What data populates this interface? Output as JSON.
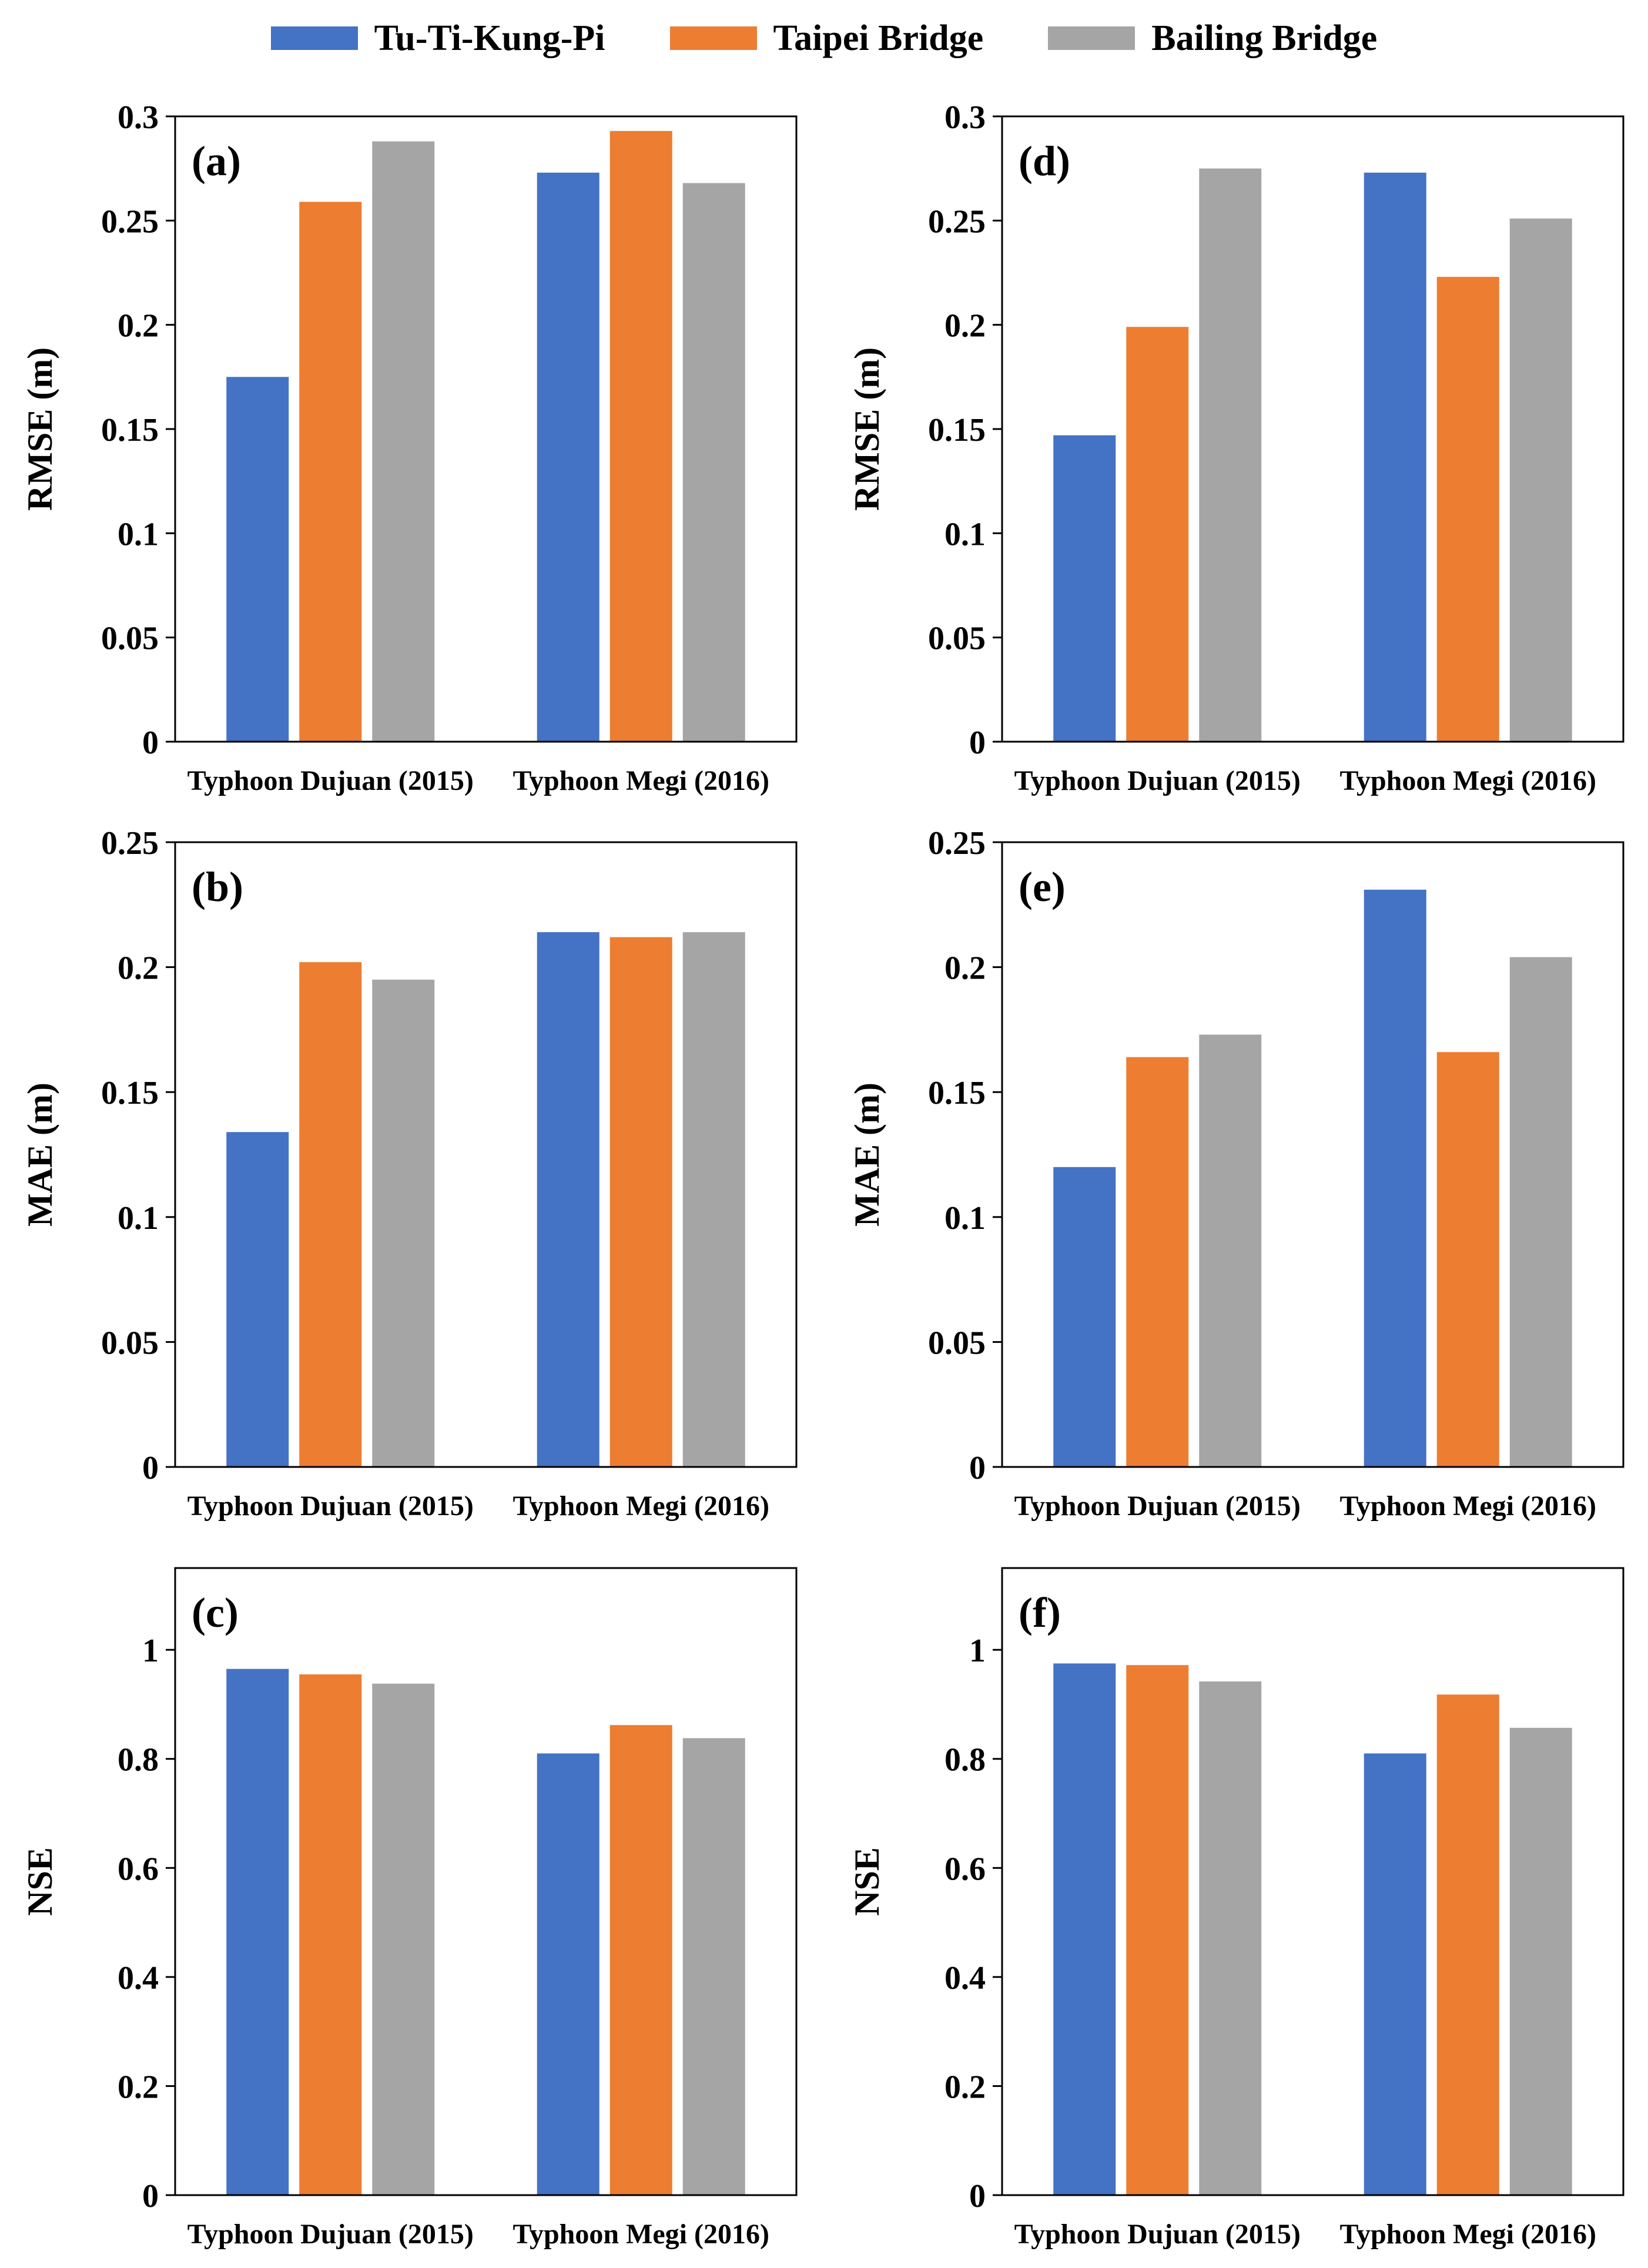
{
  "legend": [
    {
      "label": "Tu-Ti-Kung-Pi",
      "color": "#4472C4"
    },
    {
      "label": "Taipei Bridge",
      "color": "#ED7D31"
    },
    {
      "label": "Bailing Bridge",
      "color": "#A5A5A5"
    }
  ],
  "chart_data": [
    {
      "type": "bar",
      "panel": "(a)",
      "ylabel": "RMSE (m)",
      "ylim": [
        0,
        0.3
      ],
      "yticks": [
        0,
        0.05,
        0.1,
        0.15,
        0.2,
        0.25,
        0.3
      ],
      "ytick_labels": [
        "0",
        "0.05",
        "0.1",
        "0.15",
        "0.2",
        "0.25",
        "0.3"
      ],
      "categories": [
        "Typhoon Dujuan (2015)",
        "Typhoon Megi (2016)"
      ],
      "series": [
        {
          "name": "Tu-Ti-Kung-Pi",
          "values": [
            0.175,
            0.273
          ]
        },
        {
          "name": "Taipei Bridge",
          "values": [
            0.259,
            0.293
          ]
        },
        {
          "name": "Bailing Bridge",
          "values": [
            0.288,
            0.268
          ]
        }
      ]
    },
    {
      "type": "bar",
      "panel": "(b)",
      "ylabel": "MAE (m)",
      "ylim": [
        0,
        0.25
      ],
      "yticks": [
        0,
        0.05,
        0.1,
        0.15,
        0.2,
        0.25
      ],
      "ytick_labels": [
        "0",
        "0.05",
        "0.1",
        "0.15",
        "0.2",
        "0.25"
      ],
      "categories": [
        "Typhoon Dujuan (2015)",
        "Typhoon Megi (2016)"
      ],
      "series": [
        {
          "name": "Tu-Ti-Kung-Pi",
          "values": [
            0.134,
            0.214
          ]
        },
        {
          "name": "Taipei Bridge",
          "values": [
            0.202,
            0.212
          ]
        },
        {
          "name": "Bailing Bridge",
          "values": [
            0.195,
            0.214
          ]
        }
      ]
    },
    {
      "type": "bar",
      "panel": "(c)",
      "ylabel": "NSE",
      "ylim": [
        0,
        1.15
      ],
      "yticks": [
        0,
        0.2,
        0.4,
        0.6,
        0.8,
        1
      ],
      "ytick_labels": [
        "0",
        "0.2",
        "0.4",
        "0.6",
        "0.8",
        "1"
      ],
      "categories": [
        "Typhoon Dujuan (2015)",
        "Typhoon Megi (2016)"
      ],
      "series": [
        {
          "name": "Tu-Ti-Kung-Pi",
          "values": [
            0.965,
            0.81
          ]
        },
        {
          "name": "Taipei Bridge",
          "values": [
            0.955,
            0.862
          ]
        },
        {
          "name": "Bailing Bridge",
          "values": [
            0.938,
            0.838
          ]
        }
      ]
    },
    {
      "type": "bar",
      "panel": "(d)",
      "ylabel": "RMSE (m)",
      "ylim": [
        0,
        0.3
      ],
      "yticks": [
        0,
        0.05,
        0.1,
        0.15,
        0.2,
        0.25,
        0.3
      ],
      "ytick_labels": [
        "0",
        "0.05",
        "0.1",
        "0.15",
        "0.2",
        "0.25",
        "0.3"
      ],
      "categories": [
        "Typhoon Dujuan (2015)",
        "Typhoon Megi (2016)"
      ],
      "series": [
        {
          "name": "Tu-Ti-Kung-Pi",
          "values": [
            0.147,
            0.273
          ]
        },
        {
          "name": "Taipei Bridge",
          "values": [
            0.199,
            0.223
          ]
        },
        {
          "name": "Bailing Bridge",
          "values": [
            0.275,
            0.251
          ]
        }
      ]
    },
    {
      "type": "bar",
      "panel": "(e)",
      "ylabel": "MAE (m)",
      "ylim": [
        0,
        0.25
      ],
      "yticks": [
        0,
        0.05,
        0.1,
        0.15,
        0.2,
        0.25
      ],
      "ytick_labels": [
        "0",
        "0.05",
        "0.1",
        "0.15",
        "0.2",
        "0.25"
      ],
      "categories": [
        "Typhoon Dujuan (2015)",
        "Typhoon Megi (2016)"
      ],
      "series": [
        {
          "name": "Tu-Ti-Kung-Pi",
          "values": [
            0.12,
            0.231
          ]
        },
        {
          "name": "Taipei Bridge",
          "values": [
            0.164,
            0.166
          ]
        },
        {
          "name": "Bailing Bridge",
          "values": [
            0.173,
            0.204
          ]
        }
      ]
    },
    {
      "type": "bar",
      "panel": "(f)",
      "ylabel": "NSE",
      "ylim": [
        0,
        1.15
      ],
      "yticks": [
        0,
        0.2,
        0.4,
        0.6,
        0.8,
        1
      ],
      "ytick_labels": [
        "0",
        "0.2",
        "0.4",
        "0.6",
        "0.8",
        "1"
      ],
      "categories": [
        "Typhoon Dujuan (2015)",
        "Typhoon Megi (2016)"
      ],
      "series": [
        {
          "name": "Tu-Ti-Kung-Pi",
          "values": [
            0.975,
            0.81
          ]
        },
        {
          "name": "Taipei Bridge",
          "values": [
            0.972,
            0.918
          ]
        },
        {
          "name": "Bailing Bridge",
          "values": [
            0.942,
            0.857
          ]
        }
      ]
    }
  ]
}
